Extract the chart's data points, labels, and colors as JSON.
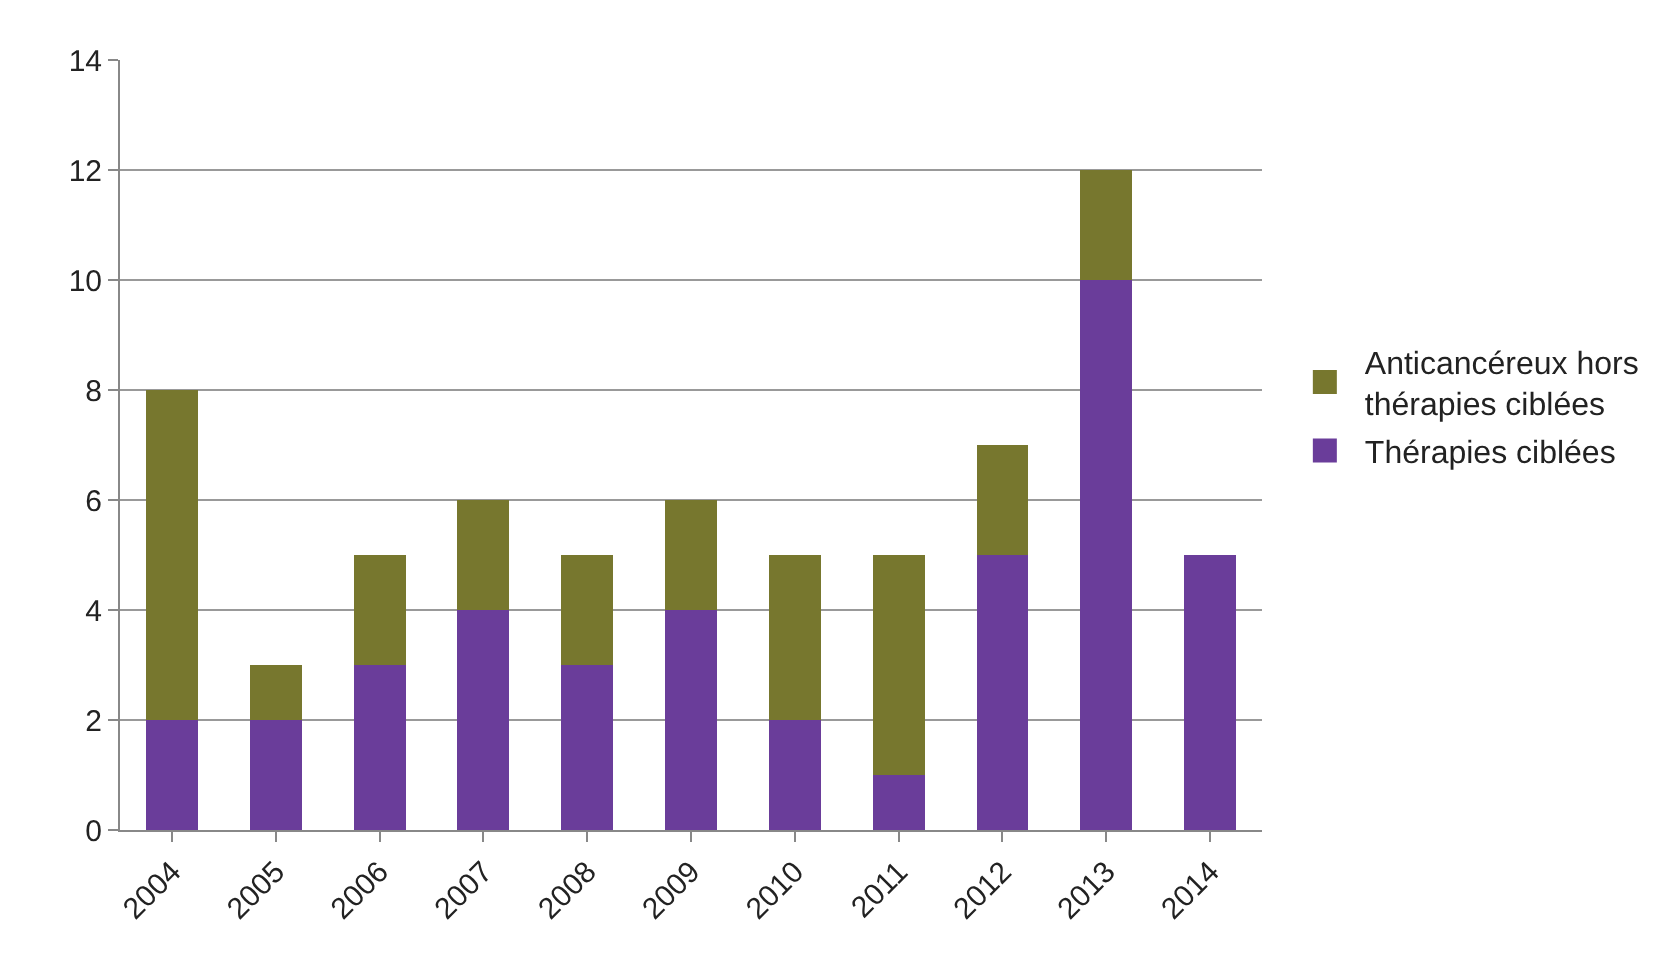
{
  "chart_data": {
    "type": "bar",
    "stacked": true,
    "categories": [
      "2004",
      "2005",
      "2006",
      "2007",
      "2008",
      "2009",
      "2010",
      "2011",
      "2012",
      "2013",
      "2014"
    ],
    "series": [
      {
        "name": "Thérapies ciblées",
        "color": "#6a3d9a",
        "values": [
          2,
          2,
          3,
          4,
          3,
          4,
          2,
          1,
          5,
          10,
          5
        ]
      },
      {
        "name": "Anticancéreux hors thérapies ciblées",
        "color": "#77772e",
        "values": [
          6,
          1,
          2,
          2,
          2,
          2,
          3,
          4,
          2,
          2,
          0
        ]
      }
    ],
    "ylim": [
      0,
      14
    ],
    "yticks": [
      0,
      2,
      4,
      6,
      8,
      10,
      12,
      14
    ],
    "grid": "y",
    "legend": "right"
  }
}
